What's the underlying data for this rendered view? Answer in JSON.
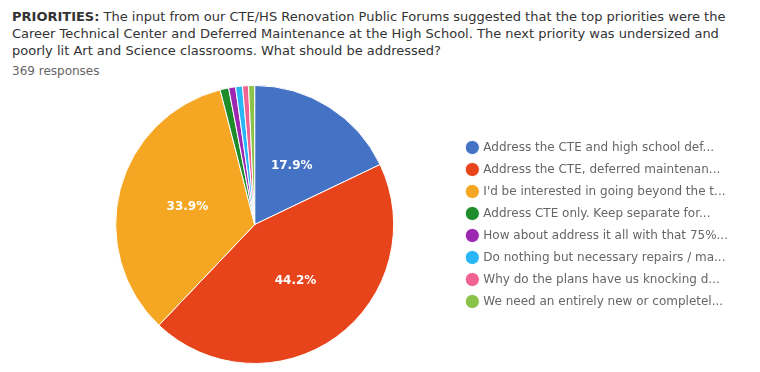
{
  "chart_data": {
    "type": "pie",
    "title": "PRIORITIES:",
    "subtitle": "The input from our CTE/HS Renovation Public Forums suggested that the top priorities were the Career Technical Center and Deferred Maintenance at the High School. The next priority was undersized and poorly lit Art and Science classrooms. What should be addressed?",
    "annotations": [
      "369 responses"
    ],
    "categories": [
      "Address the CTE and high school def...",
      "Address the CTE, deferred maintenan...",
      "I'd be interested in going beyond the t...",
      "Address CTE only. Keep separate for...",
      "How about address it all with that 75%...",
      "Do nothing but necessary repairs / ma...",
      "Why do the plans have us knocking d...",
      "We need an entirely new or completel..."
    ],
    "values": [
      17.9,
      44.2,
      33.9,
      1.0,
      0.8,
      0.8,
      0.7,
      0.7
    ],
    "value_labels": [
      "17.9%",
      "44.2%",
      "33.9%",
      null,
      null,
      null,
      null,
      null
    ],
    "colors": [
      "#4472C4",
      "#E8441C",
      "#F5A623",
      "#1E8C2A",
      "#9C27B0",
      "#29B6F6",
      "#F06292",
      "#8BC34A"
    ],
    "data_labels": true,
    "legend": "right"
  }
}
